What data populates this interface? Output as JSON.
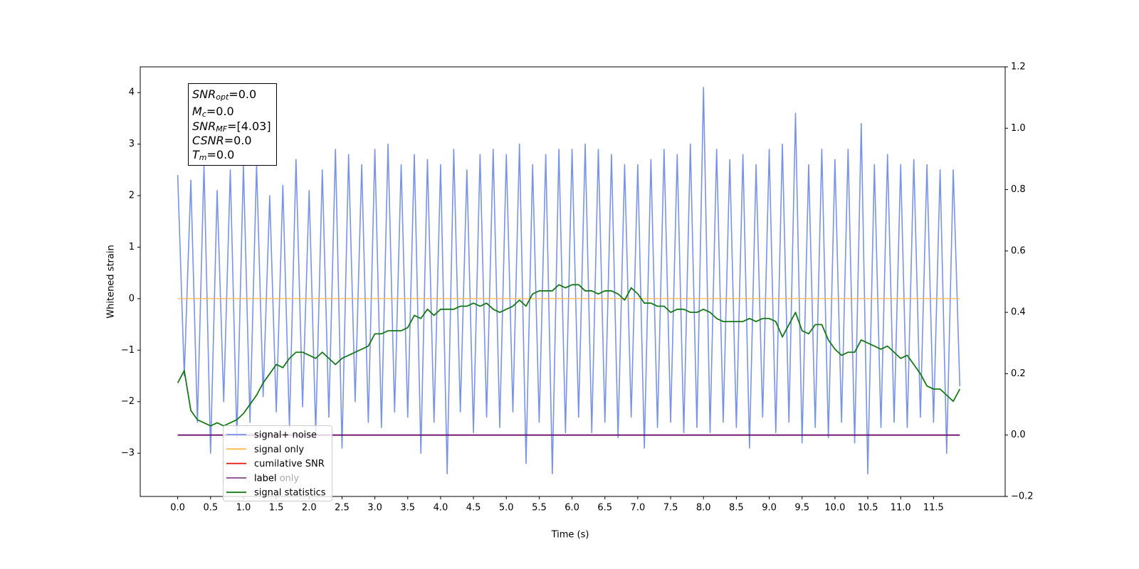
{
  "chart_data": {
    "type": "line",
    "xlabel": "Time (s)",
    "ylabel": "Whitened strain",
    "xlim": [
      -0.57,
      12.59
    ],
    "ylim": [
      -3.84,
      4.5
    ],
    "y2lim": [
      -0.2,
      1.2
    ],
    "xticks": [
      {
        "value": 0,
        "label": "0.0"
      },
      0.5,
      {
        "value": 1,
        "label": "1.0"
      },
      1.5,
      {
        "value": 2,
        "label": "2.0"
      },
      2.5,
      {
        "value": 3,
        "label": "3.0"
      },
      3.5,
      {
        "value": 4,
        "label": "4.0"
      },
      4.5,
      {
        "value": 5,
        "label": "5.0"
      },
      5.5,
      {
        "value": 6,
        "label": "6.0"
      },
      6.5,
      {
        "value": 7,
        "label": "7.0"
      },
      7.5,
      {
        "value": 8,
        "label": "8.0"
      },
      8.5,
      {
        "value": 9,
        "label": "9.0"
      },
      9.5,
      {
        "value": 10,
        "label": "10.0"
      },
      10.5,
      {
        "value": 11,
        "label": "11.0"
      },
      11.5
    ],
    "yticks": [
      {
        "value": -3,
        "label": "−3"
      },
      {
        "value": -2,
        "label": "−2"
      },
      {
        "value": -1,
        "label": "−1"
      },
      0,
      1,
      2,
      3,
      4
    ],
    "y2ticks": [
      {
        "value": -0.2,
        "label": "−0.2"
      },
      {
        "value": 0,
        "label": "0.0"
      },
      0.2,
      0.4,
      0.6,
      0.8,
      {
        "value": 1,
        "label": "1.0"
      },
      1.2
    ],
    "legend": "lower left",
    "annotation": [
      {
        "name": "SNR",
        "sub": "opt",
        "value": "=0.0"
      },
      {
        "name": "M",
        "sub": "c",
        "value": "=0.0"
      },
      {
        "name": "SNR",
        "sub": "MF",
        "value": "=[4.03]"
      },
      {
        "name": "CSNR",
        "value": "=0.0"
      },
      {
        "name": "T",
        "sub": "m",
        "value": "=0.0"
      }
    ],
    "x": [
      0,
      0.1,
      0.2,
      0.3,
      0.4,
      0.5,
      0.6,
      0.7,
      0.8,
      0.9,
      1,
      1.1,
      1.2,
      1.3,
      1.4,
      1.5,
      1.6,
      1.7,
      1.8,
      1.9,
      2,
      2.1,
      2.2,
      2.3,
      2.4,
      2.5,
      2.6,
      2.7,
      2.8,
      2.9,
      3,
      3.1,
      3.2,
      3.3,
      3.4,
      3.5,
      3.6,
      3.7,
      3.8,
      3.9,
      4,
      4.1,
      4.2,
      4.3,
      4.4,
      4.5,
      4.6,
      4.7,
      4.8,
      4.9,
      5,
      5.1,
      5.2,
      5.3,
      5.4,
      5.5,
      5.6,
      5.7,
      5.8,
      5.9,
      6,
      6.1,
      6.2,
      6.3,
      6.4,
      6.5,
      6.6,
      6.7,
      6.8,
      6.9,
      7,
      7.1,
      7.2,
      7.3,
      7.4,
      7.5,
      7.6,
      7.7,
      7.8,
      7.9,
      8,
      8.1,
      8.2,
      8.3,
      8.4,
      8.5,
      8.6,
      8.7,
      8.8,
      8.9,
      9,
      9.1,
      9.2,
      9.3,
      9.4,
      9.5,
      9.6,
      9.7,
      9.8,
      9.9,
      10,
      10.1,
      10.2,
      10.3,
      10.4,
      10.5,
      10.6,
      10.7,
      10.8,
      10.9,
      11,
      11.1,
      11.2,
      11.3,
      11.4,
      11.5,
      11.6,
      11.7,
      11.8,
      11.9
    ],
    "series": [
      {
        "name": "signal+ noise",
        "color": "#7893e8",
        "values": [
          2.4,
          -1.5,
          2.3,
          -2.4,
          2.6,
          -3.0,
          2.1,
          -2.0,
          2.5,
          -2.7,
          2.6,
          -2.4,
          2.6,
          -1.9,
          2.0,
          -2.2,
          2.2,
          -2.5,
          2.7,
          -2.1,
          2.1,
          -2.6,
          2.5,
          -2.3,
          2.9,
          -2.9,
          2.8,
          -2.0,
          2.6,
          -2.4,
          2.9,
          -2.5,
          3.0,
          -2.2,
          2.6,
          -2.3,
          2.8,
          -3.0,
          2.7,
          -2.4,
          2.6,
          -3.4,
          2.9,
          -2.2,
          2.5,
          -2.6,
          2.8,
          -2.3,
          2.9,
          -2.5,
          2.8,
          -2.2,
          3.0,
          -3.2,
          2.6,
          -2.4,
          2.8,
          -3.4,
          2.9,
          -2.6,
          2.9,
          -2.3,
          3.0,
          -2.6,
          2.9,
          -2.4,
          2.8,
          -2.7,
          2.6,
          -2.3,
          2.6,
          -2.9,
          2.7,
          -2.5,
          2.9,
          -2.4,
          2.8,
          -2.6,
          3.0,
          -2.5,
          4.1,
          -2.6,
          2.9,
          -2.4,
          2.7,
          -2.5,
          2.8,
          -2.9,
          2.6,
          -2.3,
          2.9,
          -2.6,
          3.0,
          -2.4,
          3.6,
          -2.8,
          2.6,
          -2.5,
          2.9,
          -2.7,
          2.7,
          -2.4,
          2.9,
          -2.8,
          3.4,
          -3.4,
          2.6,
          -2.5,
          2.8,
          -2.4,
          2.6,
          -2.5,
          2.7,
          -2.3,
          2.6,
          -2.4,
          2.5,
          -3.0,
          2.5,
          -1.7
        ]
      },
      {
        "name": "signal only",
        "color": "#ffb84d",
        "values": [
          0,
          0,
          0,
          0,
          0,
          0,
          0,
          0,
          0,
          0,
          0,
          0,
          0,
          0,
          0,
          0,
          0,
          0,
          0,
          0,
          0,
          0,
          0,
          0,
          0,
          0,
          0,
          0,
          0,
          0,
          0,
          0,
          0,
          0,
          0,
          0,
          0,
          0,
          0,
          0,
          0,
          0,
          0,
          0,
          0,
          0,
          0,
          0,
          0,
          0,
          0,
          0,
          0,
          0,
          0,
          0,
          0,
          0,
          0,
          0,
          0,
          0,
          0,
          0,
          0,
          0,
          0,
          0,
          0,
          0,
          0,
          0,
          0,
          0,
          0,
          0,
          0,
          0,
          0,
          0,
          0,
          0,
          0,
          0,
          0,
          0,
          0,
          0,
          0,
          0,
          0,
          0,
          0,
          0,
          0,
          0,
          0,
          0,
          0,
          0,
          0,
          0,
          0,
          0,
          0,
          0,
          0,
          0,
          0,
          0,
          0,
          0,
          0,
          0,
          0,
          0,
          0,
          0,
          0,
          0
        ]
      },
      {
        "name": "cumilative SNR",
        "color": "#e8120c",
        "values": [
          null,
          null,
          null,
          null,
          null,
          null,
          null,
          null,
          null,
          null,
          null,
          null,
          null,
          null,
          null,
          null,
          null,
          null,
          null,
          null,
          null,
          null,
          null,
          null,
          null,
          null,
          null,
          null,
          null,
          null,
          null,
          null,
          null,
          null,
          null,
          null,
          null,
          null,
          null,
          null,
          null,
          null,
          null,
          null,
          null,
          null,
          null,
          null,
          null,
          null,
          null,
          null,
          null,
          null,
          null,
          null,
          null,
          null,
          null,
          null,
          null,
          null,
          null,
          null,
          null,
          null,
          null,
          null,
          null,
          null,
          null,
          null,
          null,
          null,
          null,
          null,
          null,
          null,
          null,
          null,
          null,
          null,
          null,
          null,
          null,
          null,
          null,
          null,
          null,
          null,
          null,
          null,
          null,
          null,
          null,
          null,
          null,
          null,
          null,
          null,
          null,
          null,
          null,
          null,
          null,
          null,
          null,
          null,
          null,
          null,
          null,
          null,
          null,
          null,
          null,
          null,
          null,
          null,
          null,
          null
        ]
      },
      {
        "name": "label",
        "color": "#6a0f6a",
        "axis": "y2",
        "values": [
          0,
          0,
          0,
          0,
          0,
          0,
          0,
          0,
          0,
          0,
          0,
          0,
          0,
          0,
          0,
          0,
          0,
          0,
          0,
          0,
          0,
          0,
          0,
          0,
          0,
          0,
          0,
          0,
          0,
          0,
          0,
          0,
          0,
          0,
          0,
          0,
          0,
          0,
          0,
          0,
          0,
          0,
          0,
          0,
          0,
          0,
          0,
          0,
          0,
          0,
          0,
          0,
          0,
          0,
          0,
          0,
          0,
          0,
          0,
          0,
          0,
          0,
          0,
          0,
          0,
          0,
          0,
          0,
          0,
          0,
          0,
          0,
          0,
          0,
          0,
          0,
          0,
          0,
          0,
          0,
          0,
          0,
          0,
          0,
          0,
          0,
          0,
          0,
          0,
          0,
          0,
          0,
          0,
          0,
          0,
          0,
          0,
          0,
          0,
          0,
          0,
          0,
          0,
          0,
          0,
          0,
          0,
          0,
          0,
          0,
          0,
          0,
          0,
          0,
          0,
          0,
          0,
          0,
          0,
          0
        ]
      },
      {
        "name": "label only",
        "color": "#c0c0c0",
        "alpha": 0.35,
        "axis": "y2",
        "values": [
          null,
          null,
          null,
          null,
          null,
          null,
          null,
          null,
          null,
          null,
          null,
          null,
          null,
          null,
          null,
          null,
          null,
          null,
          null,
          null,
          null,
          null,
          null,
          null,
          null,
          null,
          null,
          null,
          null,
          null,
          null,
          null,
          null,
          null,
          null,
          null,
          null,
          null,
          null,
          null,
          null,
          null,
          null,
          null,
          null,
          null,
          null,
          null,
          null,
          null,
          null,
          null,
          null,
          null,
          null,
          null,
          null,
          null,
          null,
          null,
          null,
          null,
          null,
          null,
          null,
          null,
          null,
          null,
          null,
          null,
          null,
          null,
          null,
          null,
          null,
          null,
          null,
          null,
          null,
          null,
          null,
          null,
          null,
          null,
          null,
          null,
          null,
          null,
          null,
          null,
          null,
          null,
          null,
          null,
          null,
          null,
          null,
          null,
          null,
          null,
          null,
          null,
          null,
          null,
          null,
          null,
          null,
          null,
          null,
          null,
          null,
          null,
          null,
          null,
          null,
          null,
          null,
          null,
          null,
          null
        ]
      },
      {
        "name": "signal statistics",
        "color": "#157a15",
        "axis": "y2",
        "values": [
          0.17,
          0.21,
          0.08,
          0.05,
          0.04,
          0.03,
          0.04,
          0.03,
          0.04,
          0.05,
          0.07,
          0.1,
          0.13,
          0.17,
          0.2,
          0.23,
          0.22,
          0.25,
          0.27,
          0.27,
          0.26,
          0.25,
          0.27,
          0.25,
          0.23,
          0.25,
          0.26,
          0.27,
          0.28,
          0.29,
          0.33,
          0.33,
          0.34,
          0.34,
          0.34,
          0.35,
          0.39,
          0.38,
          0.41,
          0.39,
          0.41,
          0.41,
          0.41,
          0.42,
          0.42,
          0.43,
          0.42,
          0.43,
          0.41,
          0.4,
          0.41,
          0.42,
          0.44,
          0.42,
          0.46,
          0.47,
          0.47,
          0.47,
          0.49,
          0.48,
          0.49,
          0.49,
          0.47,
          0.47,
          0.46,
          0.47,
          0.47,
          0.46,
          0.44,
          0.48,
          0.46,
          0.43,
          0.43,
          0.42,
          0.42,
          0.4,
          0.41,
          0.41,
          0.4,
          0.4,
          0.41,
          0.4,
          0.38,
          0.37,
          0.37,
          0.37,
          0.37,
          0.38,
          0.37,
          0.38,
          0.38,
          0.37,
          0.32,
          0.36,
          0.4,
          0.34,
          0.33,
          0.36,
          0.36,
          0.31,
          0.28,
          0.26,
          0.27,
          0.27,
          0.31,
          0.3,
          0.29,
          0.28,
          0.29,
          0.27,
          0.25,
          0.26,
          0.23,
          0.2,
          0.16,
          0.15,
          0.15,
          0.13,
          0.11,
          0.15
        ]
      }
    ]
  }
}
